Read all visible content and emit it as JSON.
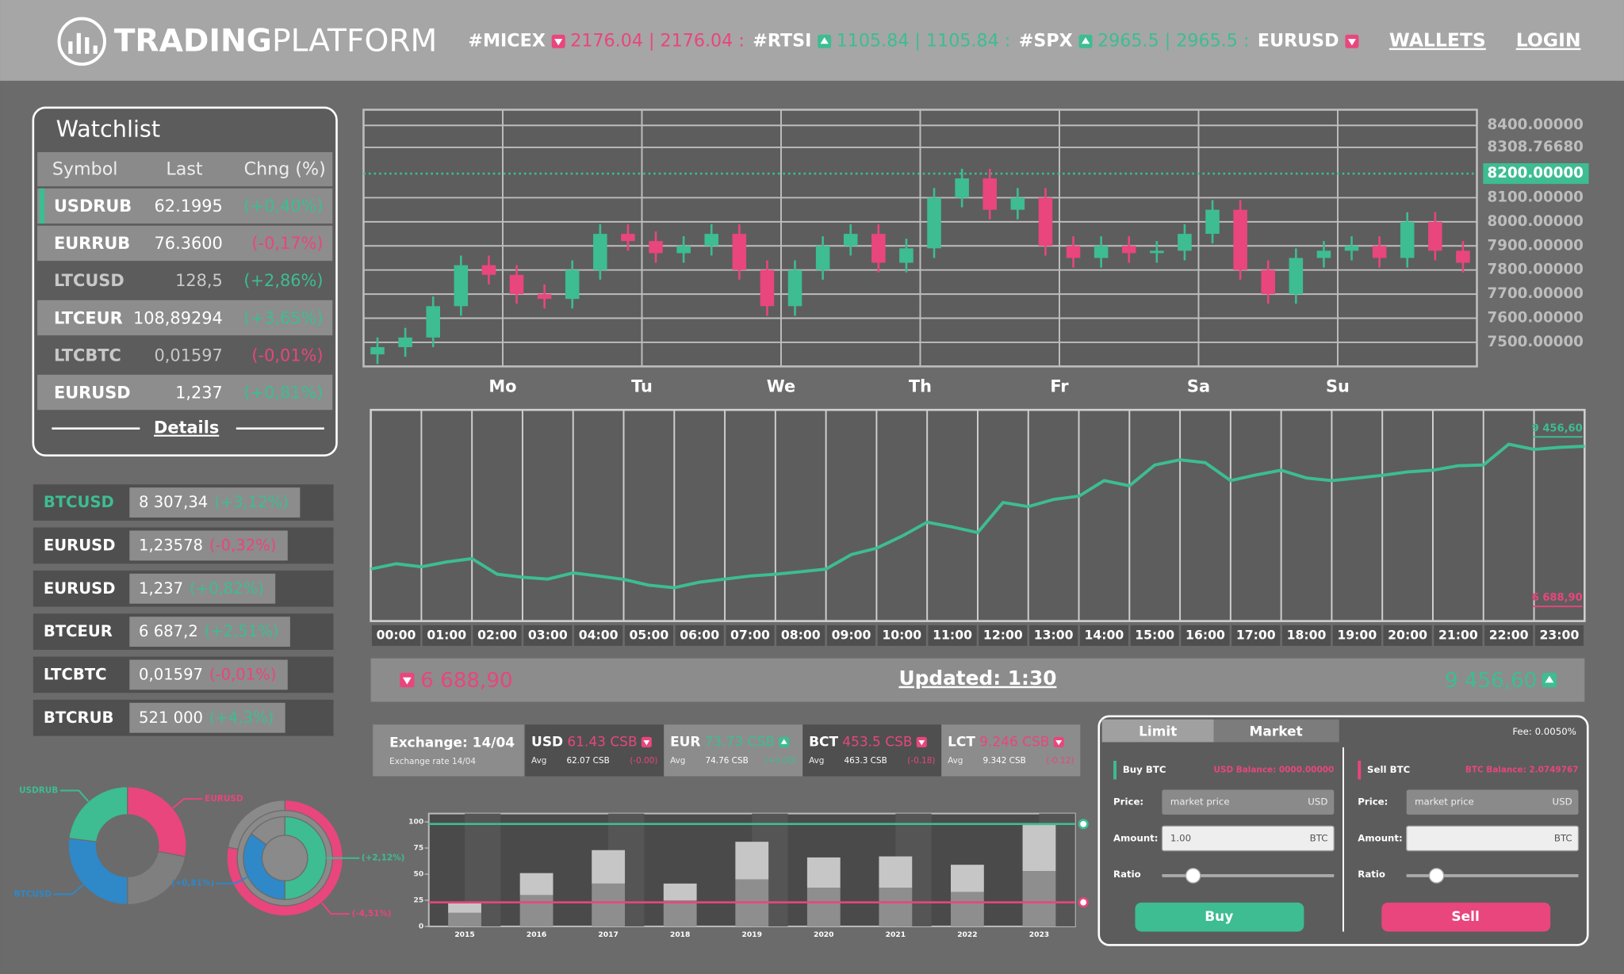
{
  "header": {
    "logo_bold": "TRADING",
    "logo_light": "PLATFORM",
    "ticker": [
      {
        "symbol": "#MICEX",
        "dir": "down",
        "quote": "2176.04 | 2176.04 :"
      },
      {
        "symbol": "#RTSI",
        "dir": "up",
        "quote": "1105.84 | 1105.84 :"
      },
      {
        "symbol": "#SPX",
        "dir": "up",
        "quote": "2965.5 | 2965.5 :"
      },
      {
        "symbol": "EURUSD",
        "dir": "down"
      }
    ],
    "nav": [
      "WALLETS",
      "LOGIN"
    ]
  },
  "watchlist": {
    "title": "Watchlist",
    "columns": [
      "Symbol",
      "Last",
      "Chng (%)"
    ],
    "active": 0,
    "rows": [
      [
        "USDRUB",
        "62.1995",
        "(+0,40%)"
      ],
      [
        "EURRUB",
        "76.3600",
        "(-0,17%)"
      ],
      [
        "LTCUSD",
        "128,5",
        "(+2,86%)"
      ],
      [
        "LTCEUR",
        "108,89294",
        "(+3,65%)"
      ],
      [
        "LTCBTC",
        "0,01597",
        "(-0,01%)"
      ],
      [
        "EURUSD",
        "1,237",
        "(+0,81%)"
      ]
    ],
    "details": "Details"
  },
  "pairs": {
    "active": 0,
    "items": [
      {
        "symbol": "BTCUSD",
        "price": "8 307,34",
        "change": "(+3,12%)"
      },
      {
        "symbol": "EURUSD",
        "price": "1,23578",
        "change": "(-0,32%)"
      },
      {
        "symbol": "EURUSD",
        "price": "1,237",
        "change": "(+0,82%)"
      },
      {
        "symbol": "BTCEUR",
        "price": "6 687,2",
        "change": "(+2,51%)"
      },
      {
        "symbol": "LTCBTC",
        "price": "0,01597",
        "change": "(-0,01%)"
      },
      {
        "symbol": "BTCRUB",
        "price": "521 000",
        "change": "(+4,3%)"
      }
    ]
  },
  "price_bar": {
    "low": "6 688,90",
    "updated": "Updated: 1:30",
    "high": "9 456,60"
  },
  "exchange": {
    "title": "Exchange: 14/04",
    "subtitle": "Exchange rate 14/04",
    "items": [
      {
        "code": "USD",
        "rate": "61.43 CSB",
        "dir": "down",
        "avg_label": "Avg",
        "avg": "62.07 CSB",
        "delta": "(-0.00)"
      },
      {
        "code": "EUR",
        "rate": "73.73 CSB",
        "dir": "up",
        "avg_label": "Avg",
        "avg": "74.76 CSB",
        "delta": "(+0.00)"
      },
      {
        "code": "BCT",
        "rate": "453.5 CSB",
        "dir": "down",
        "avg_label": "Avg",
        "avg": "463.3 CSB",
        "delta": "(-0.18)"
      },
      {
        "code": "LCT",
        "rate": "9.246 CSB",
        "dir": "down",
        "avg_label": "Avg",
        "avg": "9.342 CSB",
        "delta": "(-0.12)"
      }
    ]
  },
  "trade": {
    "tabs": [
      "Limit",
      "Market"
    ],
    "fee": "Fee: 0.0050%",
    "buy": {
      "title": "Buy BTC",
      "balance": "USD Balance: 0000.00000",
      "price_label": "Price:",
      "price_placeholder": "market price",
      "price_unit": "USD",
      "amount_label": "Amount:",
      "amount": "1.00",
      "amount_unit": "BTC",
      "ratio_label": "Ratio",
      "button": "Buy"
    },
    "sell": {
      "title": "Sell BTC",
      "balance": "BTC Balance: 2.0749767",
      "price_label": "Price:",
      "price_placeholder": "market price",
      "price_unit": "USD",
      "amount_label": "Amount:",
      "amount_unit": "BTC",
      "ratio_label": "Ratio",
      "button": "Sell"
    }
  },
  "chart_data": [
    {
      "type": "candlestick",
      "up_color": "#3dbd91",
      "down_color": "#e8467c",
      "grid": true,
      "x": [
        -0.9,
        -0.7,
        -0.5,
        -0.3,
        -0.1,
        0.1,
        0.3,
        0.5,
        0.7,
        0.9,
        1.1,
        1.3,
        1.5,
        1.7,
        1.9,
        2.1,
        2.3,
        2.5,
        2.7,
        2.9,
        3.1,
        3.3,
        3.5,
        3.7,
        3.9,
        4.1,
        4.3,
        4.5,
        4.7,
        4.9,
        5.1,
        5.3,
        5.5,
        5.7,
        5.9,
        6.1,
        6.3,
        6.5,
        6.7,
        6.9
      ],
      "open": [
        7450,
        7480,
        7520,
        7650,
        7820,
        7780,
        7700,
        7680,
        7800,
        7950,
        7920,
        7870,
        7900,
        7950,
        7800,
        7650,
        7800,
        7900,
        7950,
        7830,
        7890,
        8100,
        8180,
        8050,
        8100,
        7900,
        7850,
        7900,
        7870,
        7880,
        7950,
        8050,
        7800,
        7700,
        7850,
        7880,
        7900,
        7850,
        8000,
        7880
      ],
      "high": [
        7520,
        7560,
        7690,
        7860,
        7860,
        7820,
        7740,
        7840,
        7990,
        7990,
        7960,
        7940,
        7990,
        7990,
        7840,
        7840,
        7940,
        7990,
        7990,
        7930,
        8140,
        8220,
        8220,
        8140,
        8140,
        7940,
        7940,
        7940,
        7920,
        7990,
        8090,
        8090,
        7840,
        7890,
        7920,
        7940,
        7940,
        8040,
        8040,
        7920
      ],
      "low": [
        7410,
        7440,
        7480,
        7610,
        7740,
        7660,
        7640,
        7640,
        7760,
        7880,
        7830,
        7830,
        7860,
        7760,
        7610,
        7610,
        7760,
        7860,
        7790,
        7790,
        7850,
        8060,
        8010,
        8010,
        7860,
        7810,
        7810,
        7830,
        7830,
        7840,
        7910,
        7760,
        7660,
        7660,
        7810,
        7840,
        7810,
        7810,
        7840,
        7790
      ],
      "close": [
        7480,
        7520,
        7650,
        7820,
        7780,
        7700,
        7680,
        7800,
        7950,
        7920,
        7870,
        7900,
        7950,
        7800,
        7650,
        7800,
        7900,
        7950,
        7830,
        7890,
        8100,
        8180,
        8050,
        8100,
        7900,
        7850,
        7900,
        7870,
        7880,
        7950,
        8050,
        7800,
        7700,
        7850,
        7880,
        7900,
        7850,
        8000,
        7880,
        7830
      ],
      "xlim": [
        -1,
        7
      ],
      "xticks": [
        {
          "value": 0,
          "label": "Mo"
        },
        {
          "value": 1,
          "label": "Tu"
        },
        {
          "value": 2,
          "label": "We"
        },
        {
          "value": 3,
          "label": "Th"
        },
        {
          "value": 4,
          "label": "Fr"
        },
        {
          "value": 5,
          "label": "Sa"
        },
        {
          "value": 6,
          "label": "Su"
        }
      ],
      "ylim": [
        7400,
        8465
      ],
      "yticks": [
        {
          "value": 8400,
          "label": "8400.00000"
        },
        {
          "value": 8308.7668,
          "label": "8308.76680"
        },
        {
          "value": 8100,
          "label": "8100.00000"
        },
        {
          "value": 8000,
          "label": "8000.00000"
        },
        {
          "value": 7900,
          "label": "7900.00000"
        },
        {
          "value": 7800,
          "label": "7800.00000"
        },
        {
          "value": 7700,
          "label": "7700.00000"
        },
        {
          "value": 7600,
          "label": "7600.00000"
        },
        {
          "value": 7500,
          "label": "7500.00000"
        }
      ],
      "current": {
        "value": 8200,
        "label": "8200.00000",
        "color": "#3dbd91"
      }
    },
    {
      "type": "line",
      "grid": true,
      "x": [
        0,
        0.5,
        1,
        1.5,
        2,
        2.5,
        3,
        3.5,
        4,
        4.5,
        5,
        5.5,
        6,
        6.5,
        7,
        7.5,
        8,
        8.5,
        9,
        9.5,
        10,
        10.5,
        11,
        11.5,
        12,
        12.5,
        13,
        13.5,
        14,
        14.5,
        15,
        15.5,
        16,
        16.5,
        17,
        17.5,
        18,
        18.5,
        19,
        19.5,
        20,
        20.5,
        21,
        21.5,
        22,
        22.5,
        23,
        23.5,
        24
      ],
      "series": [
        {
          "color": "#3dbd91",
          "values": [
            7164,
            7250,
            7200,
            7280,
            7334,
            7079,
            7030,
            7000,
            7100,
            7050,
            6995,
            6900,
            6859,
            6950,
            7000,
            7050,
            7079,
            7120,
            7164,
            7400,
            7504,
            7700,
            7928,
            7850,
            7759,
            8250,
            8183,
            8300,
            8353,
            8608,
            8523,
            8862,
            8947,
            8900,
            8608,
            8700,
            8777,
            8650,
            8608,
            8650,
            8693,
            8750,
            8777,
            8850,
            8862,
            9202,
            9117,
            9150,
            9168
          ]
        }
      ],
      "xlim": [
        0,
        24
      ],
      "xticks": [
        {
          "value": 0,
          "label": "00:00"
        },
        {
          "value": 1,
          "label": "01:00"
        },
        {
          "value": 2,
          "label": "02:00"
        },
        {
          "value": 3,
          "label": "03:00"
        },
        {
          "value": 4,
          "label": "04:00"
        },
        {
          "value": 5,
          "label": "05:00"
        },
        {
          "value": 6,
          "label": "06:00"
        },
        {
          "value": 7,
          "label": "07:00"
        },
        {
          "value": 8,
          "label": "08:00"
        },
        {
          "value": 9,
          "label": "09:00"
        },
        {
          "value": 10,
          "label": "10:00"
        },
        {
          "value": 11,
          "label": "11:00"
        },
        {
          "value": 12,
          "label": "12:00"
        },
        {
          "value": 13,
          "label": "13:00"
        },
        {
          "value": 14,
          "label": "14:00"
        },
        {
          "value": 15,
          "label": "15:00"
        },
        {
          "value": 16,
          "label": "16:00"
        },
        {
          "value": 17,
          "label": "17:00"
        },
        {
          "value": 18,
          "label": "18:00"
        },
        {
          "value": 19,
          "label": "19:00"
        },
        {
          "value": 20,
          "label": "20:00"
        },
        {
          "value": 21,
          "label": "21:00"
        },
        {
          "value": 22,
          "label": "22:00"
        },
        {
          "value": 23,
          "label": "23:00"
        }
      ],
      "ylim": [
        6315,
        9762
      ],
      "yticks": [
        {
          "value": 9456.6,
          "label": "9 456,60"
        },
        {
          "value": 6688.9,
          "label": "6 688,90"
        }
      ],
      "ytick_colors": [
        "#3dbd91",
        "#e8467c"
      ]
    },
    {
      "type": "bar",
      "stacked": true,
      "categories": [
        "2015",
        "2016",
        "2017",
        "2018",
        "2019",
        "2020",
        "2021",
        "2022",
        "2023"
      ],
      "series": [
        {
          "color": "#8e8e8e",
          "values": [
            13,
            30,
            41,
            25,
            45,
            37,
            37,
            33,
            53
          ]
        },
        {
          "color": "#c6c6c6",
          "values": [
            9,
            21,
            32,
            16,
            36,
            29,
            30,
            26,
            44
          ]
        }
      ],
      "ylim": [
        0,
        108
      ],
      "yticks": [
        0,
        25,
        50,
        75,
        100
      ],
      "lines": [
        {
          "value": 98,
          "color": "#3dbd91"
        },
        {
          "value": 23,
          "color": "#e8467c"
        }
      ]
    },
    {
      "type": "donut",
      "rings": [
        {
          "values": [
            28,
            22,
            27,
            23
          ],
          "colors": [
            "#e8467c",
            "#7f7f7f",
            "#2f88c8",
            "#3dbd91"
          ],
          "labels": [
            "EURUSD",
            null,
            "BTCUSD",
            "USDRUB"
          ]
        }
      ]
    },
    {
      "type": "donut",
      "rings": [
        {
          "values": [
            78,
            22
          ],
          "colors": [
            "#e8467c",
            "#8a8a8a"
          ],
          "labels": [
            "(-4,51%)",
            null
          ]
        },
        {
          "values": [
            50,
            35,
            15
          ],
          "colors": [
            "#3dbd91",
            "#2f88c8",
            "#8a8a8a"
          ],
          "labels": [
            "(+2,12%)",
            "(+0,81%)",
            null
          ]
        }
      ]
    }
  ]
}
